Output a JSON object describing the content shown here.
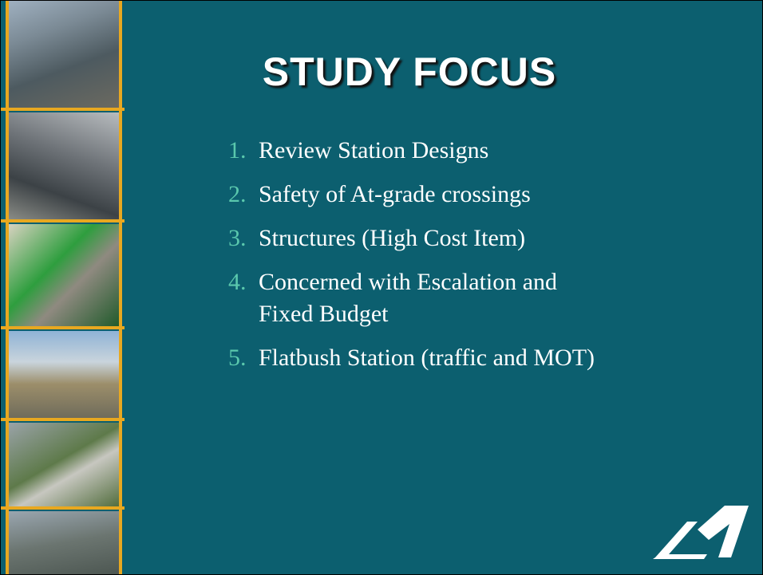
{
  "slide": {
    "title": "STUDY FOCUS",
    "items": [
      {
        "number": "1.",
        "lines": [
          "Review Station Designs"
        ]
      },
      {
        "number": "2.",
        "lines": [
          "Safety of At-grade crossings"
        ]
      },
      {
        "number": "3.",
        "lines": [
          "Structures (High Cost Item)"
        ]
      },
      {
        "number": "4.",
        "lines": [
          "Concerned with Escalation and",
          "Fixed Budget"
        ]
      },
      {
        "number": "5.",
        "lines": [
          "Flatbush Station (traffic and MOT)"
        ]
      }
    ]
  }
}
